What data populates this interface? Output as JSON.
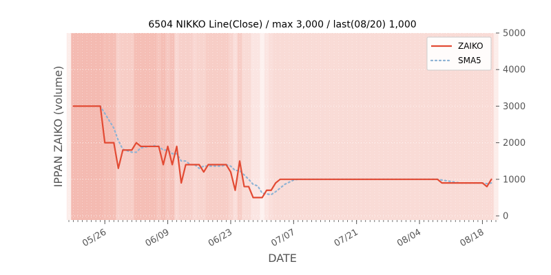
{
  "chart_data": {
    "type": "line",
    "title": "6504 NIKKO Line(Close) / max 3,000 / last(08/20) 1,000",
    "xlabel": "DATE",
    "ylabel": "IPPAN ZAIKO (volume)",
    "ylim": [
      0,
      5000
    ],
    "yticks": [
      0,
      1000,
      2000,
      3000,
      4000,
      5000
    ],
    "ytick_labels": [
      "0",
      "1000",
      "2000",
      "3000",
      "4000",
      "5000"
    ],
    "x_range": [
      "2024-05-18",
      "2024-08-21"
    ],
    "xticks": [
      {
        "date": "2024-05-26",
        "label": "05/26"
      },
      {
        "date": "2024-06-09",
        "label": "06/09"
      },
      {
        "date": "2024-06-23",
        "label": "06/23"
      },
      {
        "date": "2024-07-07",
        "label": "07/07"
      },
      {
        "date": "2024-07-21",
        "label": "07/21"
      },
      {
        "date": "2024-08-04",
        "label": "08/04"
      },
      {
        "date": "2024-08-18",
        "label": "08/18"
      }
    ],
    "legend_position": "top-right",
    "grid": true,
    "series": [
      {
        "name": "ZAIKO",
        "color": "#e24a33",
        "style": "solid",
        "points": [
          [
            "2024-05-19",
            3000
          ],
          [
            "2024-05-20",
            3000
          ],
          [
            "2024-05-21",
            3000
          ],
          [
            "2024-05-22",
            3000
          ],
          [
            "2024-05-23",
            3000
          ],
          [
            "2024-05-24",
            3000
          ],
          [
            "2024-05-25",
            3000
          ],
          [
            "2024-05-26",
            2000
          ],
          [
            "2024-05-27",
            2000
          ],
          [
            "2024-05-28",
            2000
          ],
          [
            "2024-05-29",
            1300
          ],
          [
            "2024-05-30",
            1800
          ],
          [
            "2024-05-31",
            1800
          ],
          [
            "2024-06-01",
            1800
          ],
          [
            "2024-06-02",
            2000
          ],
          [
            "2024-06-03",
            1900
          ],
          [
            "2024-06-04",
            1900
          ],
          [
            "2024-06-05",
            1900
          ],
          [
            "2024-06-06",
            1900
          ],
          [
            "2024-06-07",
            1900
          ],
          [
            "2024-06-08",
            1400
          ],
          [
            "2024-06-09",
            1900
          ],
          [
            "2024-06-10",
            1400
          ],
          [
            "2024-06-11",
            1900
          ],
          [
            "2024-06-12",
            900
          ],
          [
            "2024-06-13",
            1400
          ],
          [
            "2024-06-14",
            1400
          ],
          [
            "2024-06-15",
            1400
          ],
          [
            "2024-06-16",
            1400
          ],
          [
            "2024-06-17",
            1200
          ],
          [
            "2024-06-18",
            1400
          ],
          [
            "2024-06-19",
            1400
          ],
          [
            "2024-06-20",
            1400
          ],
          [
            "2024-06-21",
            1400
          ],
          [
            "2024-06-22",
            1400
          ],
          [
            "2024-06-23",
            1200
          ],
          [
            "2024-06-24",
            700
          ],
          [
            "2024-06-25",
            1500
          ],
          [
            "2024-06-26",
            800
          ],
          [
            "2024-06-27",
            800
          ],
          [
            "2024-06-28",
            500
          ],
          [
            "2024-06-29",
            500
          ],
          [
            "2024-06-30",
            500
          ],
          [
            "2024-07-01",
            700
          ],
          [
            "2024-07-02",
            700
          ],
          [
            "2024-07-03",
            900
          ],
          [
            "2024-07-04",
            1000
          ],
          [
            "2024-07-05",
            1000
          ],
          [
            "2024-07-06",
            1000
          ],
          [
            "2024-07-07",
            1000
          ],
          [
            "2024-07-08",
            1000
          ],
          [
            "2024-07-09",
            1000
          ],
          [
            "2024-07-10",
            1000
          ],
          [
            "2024-07-11",
            1000
          ],
          [
            "2024-07-12",
            1000
          ],
          [
            "2024-07-13",
            1000
          ],
          [
            "2024-07-14",
            1000
          ],
          [
            "2024-07-15",
            1000
          ],
          [
            "2024-07-16",
            1000
          ],
          [
            "2024-07-17",
            1000
          ],
          [
            "2024-07-18",
            1000
          ],
          [
            "2024-07-19",
            1000
          ],
          [
            "2024-07-20",
            1000
          ],
          [
            "2024-07-21",
            1000
          ],
          [
            "2024-07-22",
            1000
          ],
          [
            "2024-07-23",
            1000
          ],
          [
            "2024-07-24",
            1000
          ],
          [
            "2024-07-25",
            1000
          ],
          [
            "2024-07-26",
            1000
          ],
          [
            "2024-07-27",
            1000
          ],
          [
            "2024-07-28",
            1000
          ],
          [
            "2024-07-29",
            1000
          ],
          [
            "2024-07-30",
            1000
          ],
          [
            "2024-07-31",
            1000
          ],
          [
            "2024-08-01",
            1000
          ],
          [
            "2024-08-02",
            1000
          ],
          [
            "2024-08-03",
            1000
          ],
          [
            "2024-08-04",
            1000
          ],
          [
            "2024-08-05",
            1000
          ],
          [
            "2024-08-06",
            1000
          ],
          [
            "2024-08-07",
            1000
          ],
          [
            "2024-08-08",
            1000
          ],
          [
            "2024-08-09",
            900
          ],
          [
            "2024-08-10",
            900
          ],
          [
            "2024-08-11",
            900
          ],
          [
            "2024-08-12",
            900
          ],
          [
            "2024-08-13",
            900
          ],
          [
            "2024-08-14",
            900
          ],
          [
            "2024-08-15",
            900
          ],
          [
            "2024-08-16",
            900
          ],
          [
            "2024-08-17",
            900
          ],
          [
            "2024-08-18",
            900
          ],
          [
            "2024-08-19",
            800
          ],
          [
            "2024-08-20",
            1000
          ]
        ]
      },
      {
        "name": "SMA5",
        "color": "#8eb3d4",
        "style": "dotted",
        "points": [
          [
            "2024-05-24",
            3000
          ],
          [
            "2024-05-25",
            3000
          ],
          [
            "2024-05-26",
            2800
          ],
          [
            "2024-05-27",
            2600
          ],
          [
            "2024-05-28",
            2400
          ],
          [
            "2024-05-29",
            2060
          ],
          [
            "2024-05-30",
            1820
          ],
          [
            "2024-05-31",
            1780
          ],
          [
            "2024-06-01",
            1740
          ],
          [
            "2024-06-02",
            1740
          ],
          [
            "2024-06-03",
            1860
          ],
          [
            "2024-06-04",
            1880
          ],
          [
            "2024-06-05",
            1900
          ],
          [
            "2024-06-06",
            1920
          ],
          [
            "2024-06-07",
            1900
          ],
          [
            "2024-06-08",
            1800
          ],
          [
            "2024-06-09",
            1800
          ],
          [
            "2024-06-10",
            1700
          ],
          [
            "2024-06-11",
            1700
          ],
          [
            "2024-06-12",
            1500
          ],
          [
            "2024-06-13",
            1500
          ],
          [
            "2024-06-14",
            1400
          ],
          [
            "2024-06-15",
            1400
          ],
          [
            "2024-06-16",
            1300
          ],
          [
            "2024-06-17",
            1360
          ],
          [
            "2024-06-18",
            1360
          ],
          [
            "2024-06-19",
            1360
          ],
          [
            "2024-06-20",
            1360
          ],
          [
            "2024-06-21",
            1360
          ],
          [
            "2024-06-22",
            1400
          ],
          [
            "2024-06-23",
            1360
          ],
          [
            "2024-06-24",
            1240
          ],
          [
            "2024-06-25",
            1240
          ],
          [
            "2024-06-26",
            1120
          ],
          [
            "2024-06-27",
            1000
          ],
          [
            "2024-06-28",
            860
          ],
          [
            "2024-06-29",
            820
          ],
          [
            "2024-06-30",
            620
          ],
          [
            "2024-07-01",
            600
          ],
          [
            "2024-07-02",
            580
          ],
          [
            "2024-07-03",
            660
          ],
          [
            "2024-07-04",
            760
          ],
          [
            "2024-07-05",
            860
          ],
          [
            "2024-07-06",
            920
          ],
          [
            "2024-07-07",
            980
          ],
          [
            "2024-07-08",
            1000
          ],
          [
            "2024-07-09",
            1000
          ],
          [
            "2024-07-10",
            1000
          ],
          [
            "2024-07-11",
            1000
          ],
          [
            "2024-07-12",
            1000
          ],
          [
            "2024-07-13",
            1000
          ],
          [
            "2024-07-14",
            1000
          ],
          [
            "2024-07-15",
            1000
          ],
          [
            "2024-07-16",
            1000
          ],
          [
            "2024-07-17",
            1000
          ],
          [
            "2024-07-18",
            1000
          ],
          [
            "2024-07-19",
            1000
          ],
          [
            "2024-07-20",
            1000
          ],
          [
            "2024-07-21",
            1000
          ],
          [
            "2024-07-22",
            1000
          ],
          [
            "2024-07-23",
            1000
          ],
          [
            "2024-07-24",
            1000
          ],
          [
            "2024-07-25",
            1000
          ],
          [
            "2024-07-26",
            1000
          ],
          [
            "2024-07-27",
            1000
          ],
          [
            "2024-07-28",
            1000
          ],
          [
            "2024-07-29",
            1000
          ],
          [
            "2024-07-30",
            1000
          ],
          [
            "2024-07-31",
            1000
          ],
          [
            "2024-08-01",
            1000
          ],
          [
            "2024-08-02",
            1000
          ],
          [
            "2024-08-03",
            1000
          ],
          [
            "2024-08-04",
            1000
          ],
          [
            "2024-08-05",
            1000
          ],
          [
            "2024-08-06",
            1000
          ],
          [
            "2024-08-07",
            1000
          ],
          [
            "2024-08-08",
            1000
          ],
          [
            "2024-08-09",
            980
          ],
          [
            "2024-08-10",
            960
          ],
          [
            "2024-08-11",
            940
          ],
          [
            "2024-08-12",
            920
          ],
          [
            "2024-08-13",
            900
          ],
          [
            "2024-08-14",
            900
          ],
          [
            "2024-08-15",
            900
          ],
          [
            "2024-08-16",
            900
          ],
          [
            "2024-08-17",
            900
          ],
          [
            "2024-08-18",
            900
          ],
          [
            "2024-08-19",
            880
          ],
          [
            "2024-08-20",
            900
          ]
        ]
      }
    ],
    "background_bands": {
      "color": "#e24a33",
      "opacity_by_date": [
        [
          "2024-05-18",
          0.1
        ],
        [
          "2024-05-19",
          0.38
        ],
        [
          "2024-05-20",
          0.38
        ],
        [
          "2024-05-21",
          0.38
        ],
        [
          "2024-05-22",
          0.38
        ],
        [
          "2024-05-23",
          0.38
        ],
        [
          "2024-05-24",
          0.38
        ],
        [
          "2024-05-25",
          0.38
        ],
        [
          "2024-05-26",
          0.36
        ],
        [
          "2024-05-27",
          0.36
        ],
        [
          "2024-05-28",
          0.36
        ],
        [
          "2024-05-29",
          0.26
        ],
        [
          "2024-05-30",
          0.28
        ],
        [
          "2024-05-31",
          0.28
        ],
        [
          "2024-06-01",
          0.28
        ],
        [
          "2024-06-02",
          0.36
        ],
        [
          "2024-06-03",
          0.36
        ],
        [
          "2024-06-04",
          0.36
        ],
        [
          "2024-06-05",
          0.36
        ],
        [
          "2024-06-06",
          0.36
        ],
        [
          "2024-06-07",
          0.32
        ],
        [
          "2024-06-08",
          0.36
        ],
        [
          "2024-06-09",
          0.3
        ],
        [
          "2024-06-10",
          0.34
        ],
        [
          "2024-06-11",
          0.22
        ],
        [
          "2024-06-12",
          0.26
        ],
        [
          "2024-06-13",
          0.26
        ],
        [
          "2024-06-14",
          0.26
        ],
        [
          "2024-06-15",
          0.22
        ],
        [
          "2024-06-16",
          0.24
        ],
        [
          "2024-06-17",
          0.24
        ],
        [
          "2024-06-18",
          0.28
        ],
        [
          "2024-06-19",
          0.28
        ],
        [
          "2024-06-20",
          0.28
        ],
        [
          "2024-06-21",
          0.28
        ],
        [
          "2024-06-22",
          0.28
        ],
        [
          "2024-06-23",
          0.24
        ],
        [
          "2024-06-24",
          0.18
        ],
        [
          "2024-06-25",
          0.28
        ],
        [
          "2024-06-26",
          0.2
        ],
        [
          "2024-06-27",
          0.2
        ],
        [
          "2024-06-28",
          0.14
        ],
        [
          "2024-06-29",
          0.14
        ],
        [
          "2024-06-30",
          0.08
        ],
        [
          "2024-07-01",
          0.14
        ],
        [
          "2024-07-02",
          0.18
        ],
        [
          "2024-07-03",
          0.2
        ],
        [
          "2024-07-04",
          0.2
        ],
        [
          "2024-07-05",
          0.2
        ],
        [
          "2024-07-06",
          0.2
        ],
        [
          "2024-07-07",
          0.2
        ],
        [
          "2024-07-08",
          0.2
        ],
        [
          "2024-07-09",
          0.2
        ],
        [
          "2024-07-10",
          0.2
        ],
        [
          "2024-07-11",
          0.2
        ],
        [
          "2024-07-12",
          0.2
        ],
        [
          "2024-07-13",
          0.2
        ],
        [
          "2024-07-14",
          0.2
        ],
        [
          "2024-07-15",
          0.2
        ],
        [
          "2024-07-16",
          0.2
        ],
        [
          "2024-07-17",
          0.2
        ],
        [
          "2024-07-18",
          0.2
        ],
        [
          "2024-07-19",
          0.2
        ],
        [
          "2024-07-20",
          0.2
        ],
        [
          "2024-07-21",
          0.2
        ],
        [
          "2024-07-22",
          0.2
        ],
        [
          "2024-07-23",
          0.2
        ],
        [
          "2024-07-24",
          0.2
        ],
        [
          "2024-07-25",
          0.2
        ],
        [
          "2024-07-26",
          0.2
        ],
        [
          "2024-07-27",
          0.2
        ],
        [
          "2024-07-28",
          0.2
        ],
        [
          "2024-07-29",
          0.2
        ],
        [
          "2024-07-30",
          0.2
        ],
        [
          "2024-07-31",
          0.2
        ],
        [
          "2024-08-01",
          0.2
        ],
        [
          "2024-08-02",
          0.2
        ],
        [
          "2024-08-03",
          0.2
        ],
        [
          "2024-08-04",
          0.2
        ],
        [
          "2024-08-05",
          0.2
        ],
        [
          "2024-08-06",
          0.2
        ],
        [
          "2024-08-07",
          0.2
        ],
        [
          "2024-08-08",
          0.2
        ],
        [
          "2024-08-09",
          0.2
        ],
        [
          "2024-08-10",
          0.2
        ],
        [
          "2024-08-11",
          0.2
        ],
        [
          "2024-08-12",
          0.2
        ],
        [
          "2024-08-13",
          0.2
        ],
        [
          "2024-08-14",
          0.2
        ],
        [
          "2024-08-15",
          0.2
        ],
        [
          "2024-08-16",
          0.2
        ],
        [
          "2024-08-17",
          0.2
        ],
        [
          "2024-08-18",
          0.2
        ],
        [
          "2024-08-19",
          0.2
        ],
        [
          "2024-08-20",
          0.2
        ],
        [
          "2024-08-21",
          0.1
        ]
      ]
    },
    "colors": {
      "axes_background": "#e5e5e5",
      "grid": "#ffffff",
      "text": "#555555"
    }
  }
}
